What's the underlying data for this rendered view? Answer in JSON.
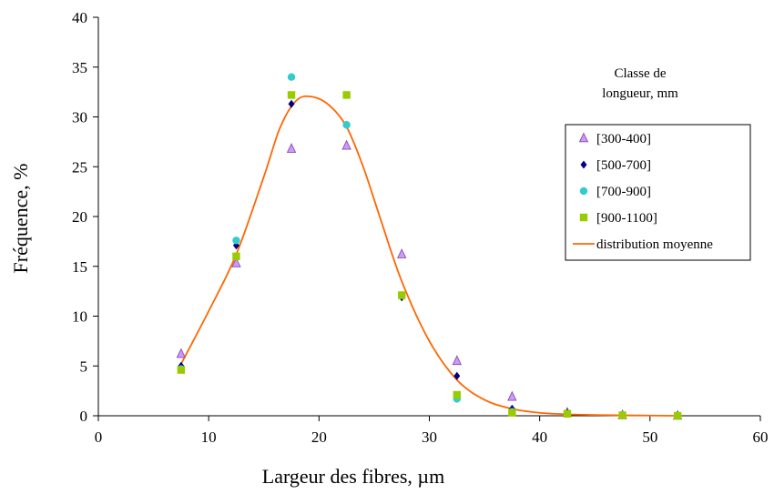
{
  "chart_data": {
    "type": "scatter",
    "title": "",
    "xlabel": "Largeur des fibres, µm",
    "ylabel": "Fréquence, %",
    "xlim": [
      0,
      60
    ],
    "ylim": [
      0,
      40
    ],
    "x_ticks": [
      "0",
      "10",
      "20",
      "30",
      "40",
      "50",
      "60"
    ],
    "y_ticks": [
      "0",
      "5",
      "10",
      "15",
      "20",
      "25",
      "30",
      "35",
      "40"
    ],
    "grid": false,
    "legend_title": [
      "Classe de",
      "longueur, mm"
    ],
    "legend_position": "right",
    "series": [
      {
        "name": "[300-400]",
        "marker": "triangle",
        "color": "#cc99ff",
        "stroke": "#8a4fa0",
        "x": [
          7.5,
          12.5,
          17.5,
          22.5,
          27.5,
          32.5,
          37.5,
          42.5,
          47.5,
          52.5
        ],
        "y": [
          6.2,
          15.3,
          26.8,
          27.1,
          16.2,
          5.5,
          1.9,
          0.3,
          0.05,
          0.0
        ]
      },
      {
        "name": "[500-700]",
        "marker": "diamond",
        "color": "#000080",
        "x": [
          7.5,
          12.5,
          17.5,
          22.5,
          27.5,
          32.5,
          37.5,
          42.5,
          47.5,
          52.5
        ],
        "y": [
          5.0,
          17.1,
          31.3,
          29.2,
          11.9,
          4.0,
          0.7,
          0.3,
          0.05,
          0.0
        ]
      },
      {
        "name": "[700-900]",
        "marker": "circle",
        "color": "#33cccc",
        "x": [
          7.5,
          12.5,
          17.5,
          22.5,
          27.5,
          32.5,
          37.5,
          42.5,
          47.5,
          52.5
        ],
        "y": [
          4.7,
          17.6,
          34.0,
          29.2,
          12.1,
          1.7,
          0.4,
          0.2,
          0.05,
          0.0
        ]
      },
      {
        "name": "[900-1100]",
        "marker": "square",
        "color": "#99cc00",
        "x": [
          7.5,
          12.5,
          17.5,
          22.5,
          27.5,
          32.5,
          37.5,
          42.5,
          47.5,
          52.5
        ],
        "y": [
          4.6,
          16.0,
          32.2,
          32.2,
          12.1,
          2.1,
          0.3,
          0.2,
          0.05,
          0.0
        ]
      },
      {
        "name": "distribution moyenne",
        "marker": "line",
        "color": "#ff6600",
        "x": [
          7.5,
          10,
          12.5,
          15,
          16.5,
          18,
          19.5,
          21,
          22.5,
          24,
          25.5,
          27.5,
          30,
          32.5,
          35,
          37.5,
          40,
          42.5,
          45,
          47.5,
          50,
          52.5
        ],
        "y": [
          5.2,
          10.5,
          16.2,
          24.0,
          29.0,
          31.7,
          32.0,
          31.1,
          29.0,
          25.0,
          20.0,
          13.5,
          7.5,
          3.6,
          1.6,
          0.7,
          0.3,
          0.15,
          0.08,
          0.04,
          0.02,
          0.0
        ]
      }
    ]
  }
}
